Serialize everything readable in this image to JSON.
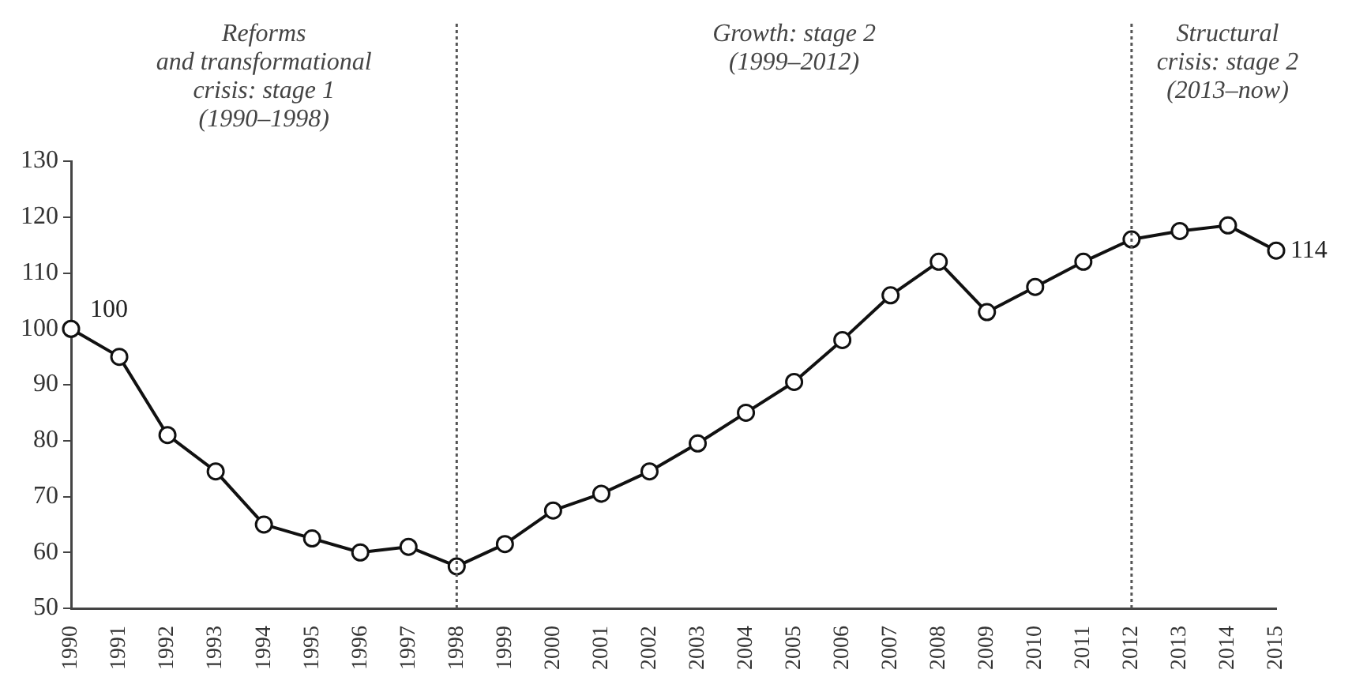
{
  "chart_data": {
    "type": "line",
    "categories": [
      "1990",
      "1991",
      "1992",
      "1993",
      "1994",
      "1995",
      "1996",
      "1997",
      "1998",
      "1999",
      "2000",
      "2001",
      "2002",
      "2003",
      "2004",
      "2005",
      "2006",
      "2007",
      "2008",
      "2009",
      "2010",
      "2011",
      "2012",
      "2013",
      "2014",
      "2015"
    ],
    "series": [
      {
        "color": "#111111",
        "values": [
          100,
          95,
          81,
          74.5,
          65,
          62.5,
          60,
          61,
          57.5,
          61.5,
          67.5,
          70.5,
          74.5,
          79.5,
          85,
          90.5,
          98,
          106,
          112,
          103,
          107.5,
          112,
          116,
          117.5,
          118.5,
          114
        ],
        "value_labels": [
          "100",
          null,
          null,
          null,
          null,
          null,
          null,
          null,
          null,
          null,
          null,
          null,
          null,
          null,
          null,
          null,
          null,
          null,
          null,
          null,
          null,
          null,
          null,
          null,
          null,
          "114"
        ]
      }
    ],
    "ylim": [
      50,
      130
    ],
    "yticks": [
      50,
      60,
      70,
      80,
      90,
      100,
      110,
      120,
      130
    ],
    "ref_lines": [
      {
        "axis": "x",
        "value": "1998",
        "color": "#555555",
        "line_style": "dotted"
      },
      {
        "axis": "x",
        "value": "2012",
        "color": "#555555",
        "line_style": "dotted"
      }
    ],
    "annotations": [
      "Reforms\nand transformational\ncrisis: stage 1\n(1990–1998)",
      "Growth: stage 2\n(1999–2012)",
      "Structural\ncrisis: stage 2\n(2013–now)"
    ],
    "marker": "circle",
    "line_style": "solid",
    "grid": false,
    "legend": false
  }
}
